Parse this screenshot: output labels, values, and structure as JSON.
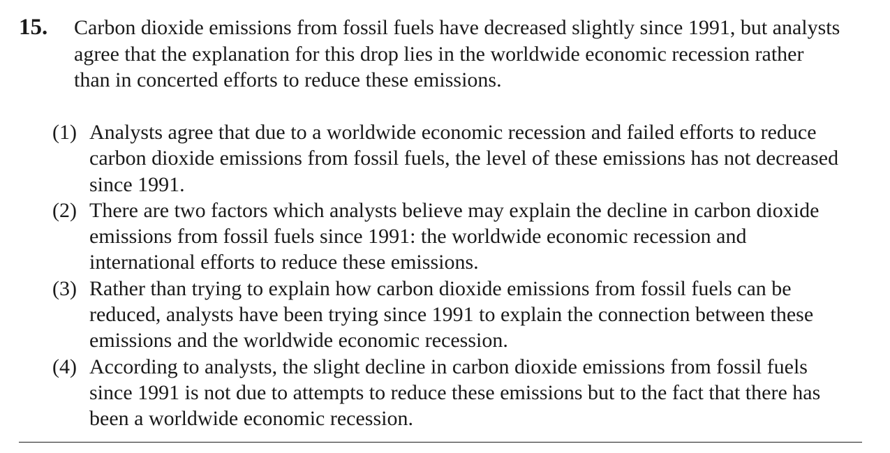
{
  "question": {
    "number": "15.",
    "stem": "Carbon dioxide emissions from fossil fuels have decreased slightly since 1991, but analysts agree that the explanation for this drop lies in the worldwide economic recession rather than in concerted efforts to reduce these emissions."
  },
  "options": [
    {
      "label": "(1)",
      "text": "Analysts agree that due to a worldwide economic recession and failed efforts to reduce carbon dioxide emissions from fossil fuels, the level of these emissions has not decreased since 1991."
    },
    {
      "label": "(2)",
      "text": "There are two factors which analysts believe may explain the decline in carbon dioxide emissions from fossil fuels since 1991:  the worldwide economic recession and international efforts to reduce these emissions."
    },
    {
      "label": "(3)",
      "text": "Rather than trying to explain how carbon dioxide emissions from fossil fuels can be reduced, analysts have been trying since 1991 to explain the connection between these emissions and the worldwide economic recession."
    },
    {
      "label": "(4)",
      "text": "According to analysts, the slight decline in carbon dioxide emissions from fossil fuels since 1991 is not due to attempts to reduce these emissions but to the fact that there has been a worldwide economic recession."
    }
  ]
}
